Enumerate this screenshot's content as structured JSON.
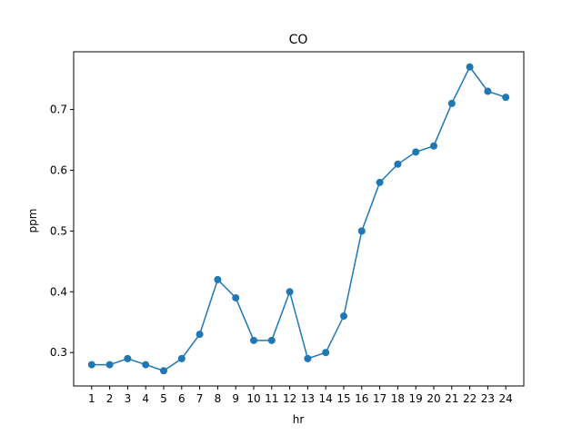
{
  "chart_data": {
    "type": "line",
    "title": "CO",
    "xlabel": "hr",
    "ylabel": "ppm",
    "x": [
      1,
      2,
      3,
      4,
      5,
      6,
      7,
      8,
      9,
      10,
      11,
      12,
      13,
      14,
      15,
      16,
      17,
      18,
      19,
      20,
      21,
      22,
      23,
      24
    ],
    "xtick_labels": [
      "1",
      "2",
      "3",
      "4",
      "5",
      "6",
      "7",
      "8",
      "9",
      "10",
      "11",
      "12",
      "13",
      "14",
      "15",
      "16",
      "17",
      "18",
      "19",
      "20",
      "21",
      "22",
      "23",
      "24"
    ],
    "series": [
      {
        "values": [
          0.28,
          0.28,
          0.29,
          0.28,
          0.27,
          0.29,
          0.33,
          0.42,
          0.39,
          0.32,
          0.32,
          0.4,
          0.29,
          0.3,
          0.36,
          0.5,
          0.58,
          0.61,
          0.63,
          0.64,
          0.71,
          0.77,
          0.73,
          0.72
        ],
        "color": "#1f77b4",
        "marker": "circle"
      }
    ],
    "yticks": [
      0.3,
      0.4,
      0.5,
      0.6,
      0.7
    ],
    "ytick_labels": [
      "0.3",
      "0.4",
      "0.5",
      "0.6",
      "0.7"
    ],
    "xlim": [
      0,
      25
    ],
    "ylim": [
      0.245,
      0.795
    ],
    "grid": false,
    "legend": "none"
  }
}
